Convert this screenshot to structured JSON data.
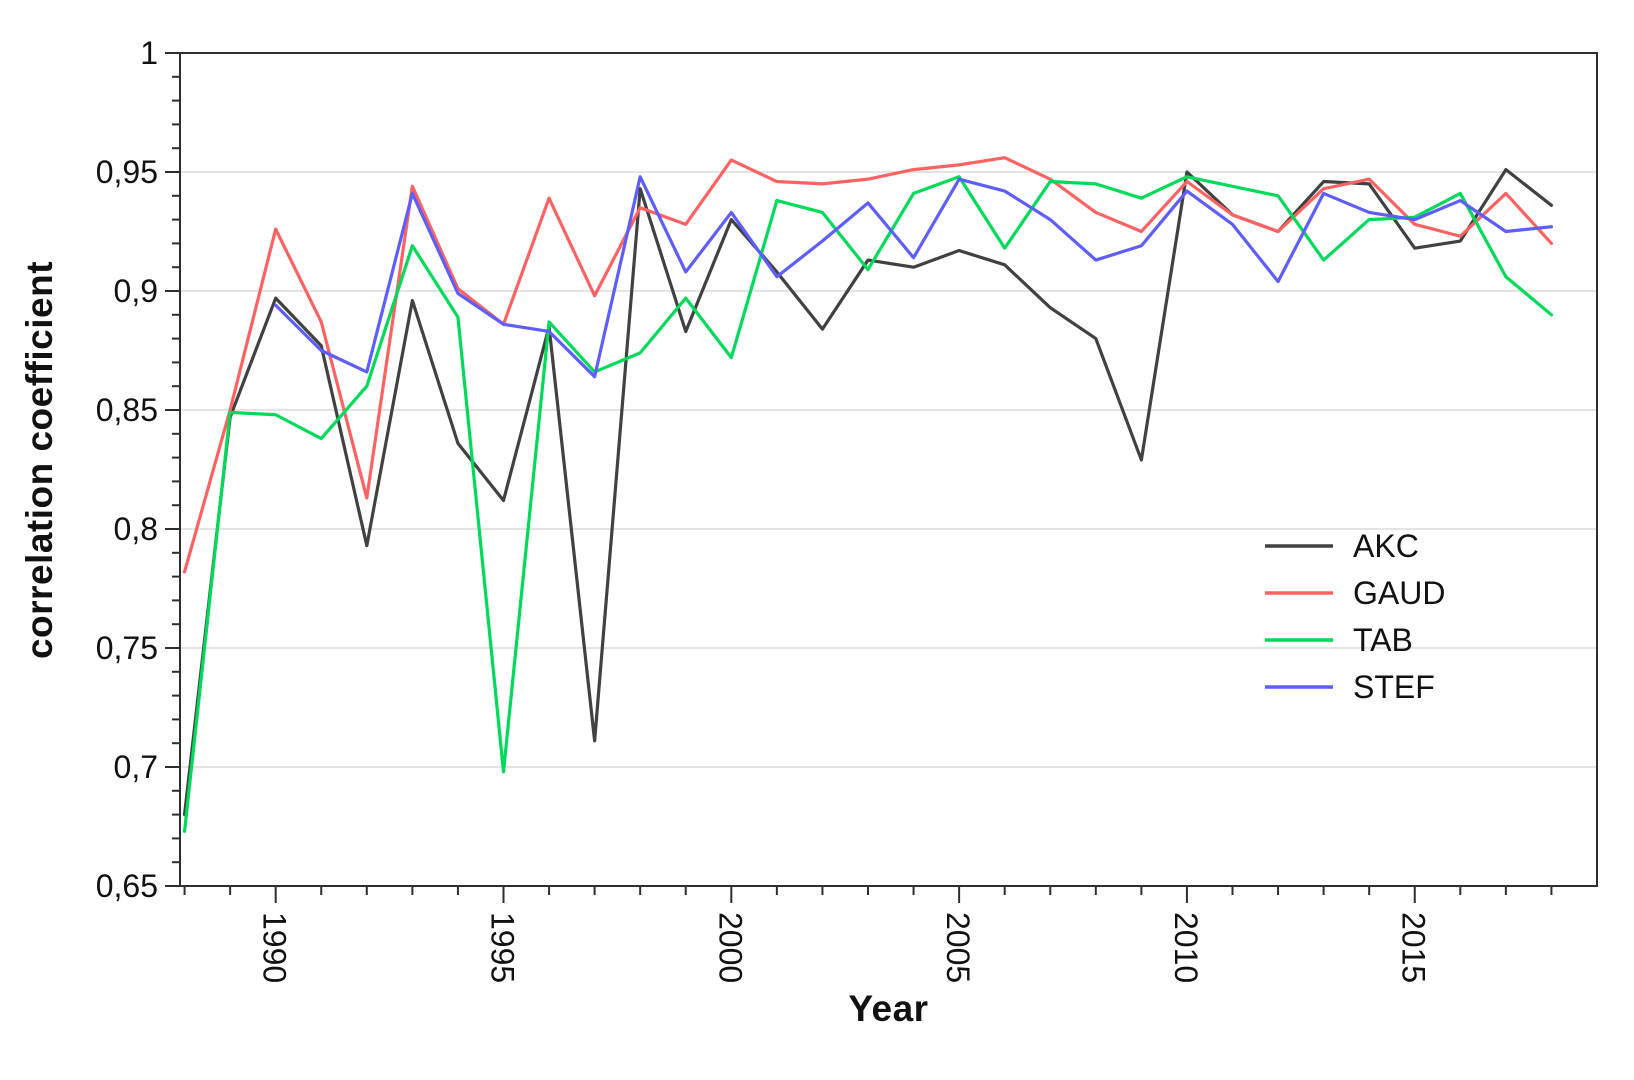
{
  "chart_data": {
    "type": "line",
    "title": "",
    "xlabel": "Year",
    "ylabel": "correlation coefficient",
    "grid": "horizontal-major-only",
    "legend_position": "right-middle",
    "background_color": "#ffffff",
    "axis_color": "#2e2e2e",
    "gridline_color": "#dcdcdc",
    "tick_label_color": "#111111",
    "decimal_separator": ",",
    "xlim": [
      1987.9,
      2019.0
    ],
    "ylim": [
      0.65,
      1.0
    ],
    "x": [
      1988,
      1989,
      1990,
      1991,
      1992,
      1993,
      1994,
      1995,
      1996,
      1997,
      1998,
      1999,
      2000,
      2001,
      2002,
      2003,
      2004,
      2005,
      2006,
      2007,
      2008,
      2009,
      2010,
      2011,
      2012,
      2013,
      2014,
      2015,
      2016,
      2017,
      2018
    ],
    "x_major_ticks": [
      {
        "year": 1990,
        "label": "1990"
      },
      {
        "year": 1995,
        "label": "1995"
      },
      {
        "year": 2000,
        "label": "2000"
      },
      {
        "year": 2005,
        "label": "2005"
      },
      {
        "year": 2010,
        "label": "2010"
      },
      {
        "year": 2015,
        "label": "2015"
      }
    ],
    "y_major_ticks": [
      {
        "v": 0.65,
        "label": "0,65"
      },
      {
        "v": 0.7,
        "label": "0,7"
      },
      {
        "v": 0.75,
        "label": "0,75"
      },
      {
        "v": 0.8,
        "label": "0,8"
      },
      {
        "v": 0.85,
        "label": "0,85"
      },
      {
        "v": 0.9,
        "label": "0,9"
      },
      {
        "v": 0.95,
        "label": "0,95"
      },
      {
        "v": 1.0,
        "label": "1"
      }
    ],
    "y_minor_step": 0.01,
    "series": [
      {
        "name": "AKC",
        "color": "#414141",
        "values": [
          0.68,
          0.847,
          0.897,
          0.877,
          0.793,
          0.896,
          0.836,
          0.812,
          0.885,
          0.711,
          0.943,
          0.883,
          0.93,
          0.908,
          0.884,
          0.913,
          0.91,
          0.917,
          0.911,
          0.893,
          0.88,
          0.829,
          0.95,
          0.932,
          0.925,
          0.946,
          0.945,
          0.918,
          0.921,
          0.951,
          0.936
        ]
      },
      {
        "name": "GAUD",
        "color": "#ff6262",
        "values": [
          0.782,
          0.85,
          0.926,
          0.887,
          0.813,
          0.944,
          0.901,
          0.886,
          0.939,
          0.898,
          0.935,
          0.928,
          0.955,
          0.946,
          0.945,
          0.947,
          0.951,
          0.953,
          0.956,
          0.947,
          0.933,
          0.925,
          0.946,
          0.932,
          0.925,
          0.943,
          0.947,
          0.928,
          0.923,
          0.941,
          0.92
        ]
      },
      {
        "name": "TAB",
        "color": "#00da5a",
        "values": [
          0.673,
          0.849,
          0.848,
          0.838,
          0.86,
          0.919,
          0.889,
          0.698,
          0.887,
          0.866,
          0.874,
          0.897,
          0.872,
          0.938,
          0.933,
          0.909,
          0.941,
          0.948,
          0.918,
          0.946,
          0.945,
          0.939,
          0.948,
          0.944,
          0.94,
          0.913,
          0.93,
          0.931,
          0.941,
          0.906,
          0.89
        ]
      },
      {
        "name": "STEF",
        "color": "#5e5eff",
        "values": [
          null,
          null,
          0.894,
          0.875,
          0.866,
          0.941,
          0.899,
          0.886,
          0.883,
          0.864,
          0.948,
          0.908,
          0.933,
          0.906,
          0.921,
          0.937,
          0.914,
          0.947,
          0.942,
          0.93,
          0.913,
          0.919,
          0.942,
          0.928,
          0.904,
          0.941,
          0.933,
          0.93,
          0.938,
          0.925,
          0.927
        ]
      }
    ]
  }
}
